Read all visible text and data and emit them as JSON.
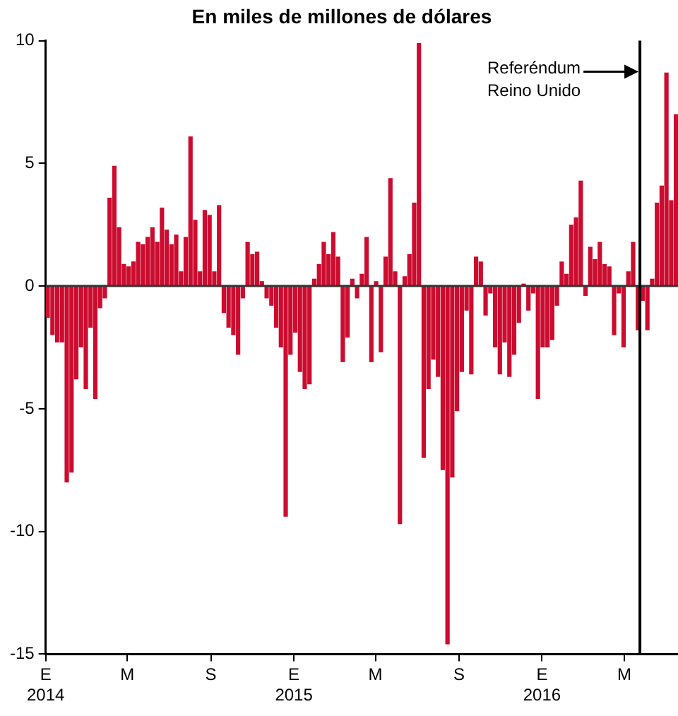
{
  "chart_data": {
    "type": "bar",
    "title": "En miles de millones de dólares",
    "x": [
      "2014-01-04",
      "2014-01-11",
      "2014-01-18",
      "2014-01-25",
      "2014-02-01",
      "2014-02-08",
      "2014-02-15",
      "2014-02-22",
      "2014-03-01",
      "2014-03-08",
      "2014-03-15",
      "2014-03-22",
      "2014-03-29",
      "2014-04-05",
      "2014-04-12",
      "2014-04-19",
      "2014-04-26",
      "2014-05-03",
      "2014-05-10",
      "2014-05-17",
      "2014-05-24",
      "2014-05-31",
      "2014-06-07",
      "2014-06-14",
      "2014-06-21",
      "2014-06-28",
      "2014-07-05",
      "2014-07-12",
      "2014-07-19",
      "2014-07-26",
      "2014-08-02",
      "2014-08-09",
      "2014-08-16",
      "2014-08-23",
      "2014-08-30",
      "2014-09-06",
      "2014-09-13",
      "2014-09-20",
      "2014-09-27",
      "2014-10-04",
      "2014-10-11",
      "2014-10-18",
      "2014-10-25",
      "2014-11-01",
      "2014-11-08",
      "2014-11-15",
      "2014-11-22",
      "2014-11-29",
      "2014-12-06",
      "2014-12-13",
      "2014-12-20",
      "2014-12-27",
      "2015-01-03",
      "2015-01-10",
      "2015-01-17",
      "2015-01-24",
      "2015-01-31",
      "2015-02-07",
      "2015-02-14",
      "2015-02-21",
      "2015-02-28",
      "2015-03-07",
      "2015-03-14",
      "2015-03-21",
      "2015-03-28",
      "2015-04-04",
      "2015-04-11",
      "2015-04-18",
      "2015-04-25",
      "2015-05-02",
      "2015-05-09",
      "2015-05-16",
      "2015-05-23",
      "2015-05-30",
      "2015-06-06",
      "2015-06-13",
      "2015-06-20",
      "2015-06-27",
      "2015-07-04",
      "2015-07-11",
      "2015-07-18",
      "2015-07-25",
      "2015-08-01",
      "2015-08-08",
      "2015-08-15",
      "2015-08-22",
      "2015-08-29",
      "2015-09-05",
      "2015-09-12",
      "2015-09-19",
      "2015-09-26",
      "2015-10-03",
      "2015-10-10",
      "2015-10-17",
      "2015-10-24",
      "2015-10-31",
      "2015-11-07",
      "2015-11-14",
      "2015-11-21",
      "2015-11-28",
      "2015-12-05",
      "2015-12-12",
      "2015-12-19",
      "2015-12-26",
      "2016-01-02",
      "2016-01-09",
      "2016-01-16",
      "2016-01-23",
      "2016-01-30",
      "2016-02-06",
      "2016-02-13",
      "2016-02-20",
      "2016-02-27",
      "2016-03-05",
      "2016-03-12",
      "2016-03-19",
      "2016-03-26",
      "2016-04-02",
      "2016-04-09",
      "2016-04-16",
      "2016-04-23",
      "2016-04-30",
      "2016-05-07",
      "2016-05-14",
      "2016-05-21",
      "2016-05-28",
      "2016-06-04",
      "2016-06-11",
      "2016-06-18",
      "2016-06-25",
      "2016-07-02",
      "2016-07-09",
      "2016-07-16"
    ],
    "values": [
      -1.3,
      -2.0,
      -2.3,
      -2.3,
      -8.0,
      -7.6,
      -3.8,
      -2.5,
      -4.2,
      -1.7,
      -4.6,
      -0.9,
      -0.5,
      3.6,
      4.9,
      2.4,
      0.9,
      0.8,
      1.0,
      1.8,
      1.7,
      2.0,
      2.4,
      1.8,
      3.2,
      2.3,
      1.7,
      2.1,
      0.6,
      2.0,
      6.1,
      2.7,
      0.6,
      3.1,
      2.9,
      0.6,
      3.3,
      -1.1,
      -1.7,
      -2.0,
      -2.8,
      -0.5,
      1.8,
      1.3,
      1.4,
      0.2,
      -0.5,
      -0.8,
      -1.7,
      -2.5,
      -9.4,
      -2.8,
      -1.9,
      -3.5,
      -4.2,
      -4.0,
      0.3,
      0.9,
      1.8,
      1.3,
      2.2,
      1.2,
      -3.1,
      -2.1,
      0.3,
      -0.5,
      0.5,
      2.0,
      -3.1,
      0.2,
      -2.7,
      1.2,
      4.4,
      0.6,
      -9.7,
      0.4,
      1.3,
      3.4,
      9.9,
      -7.0,
      -4.2,
      -3.0,
      -3.7,
      -7.5,
      -14.6,
      -7.8,
      -5.1,
      -3.5,
      -1.0,
      -3.6,
      1.2,
      1.0,
      -1.2,
      -0.3,
      -2.5,
      -3.6,
      -2.3,
      -3.7,
      -2.8,
      -1.5,
      0.1,
      -1.0,
      -0.3,
      -4.6,
      -2.5,
      -2.5,
      -2.2,
      -0.8,
      1.0,
      0.5,
      2.5,
      2.8,
      4.3,
      -0.4,
      1.6,
      1.1,
      1.8,
      0.9,
      0.8,
      -2.0,
      -0.3,
      -2.5,
      0.6,
      1.8,
      -1.8,
      -0.6,
      -1.8,
      0.3,
      3.4,
      4.1,
      8.7,
      3.5,
      7.0
    ],
    "color": "#cc0c2f",
    "xlim": [
      "2014-01-01",
      "2016-07-19"
    ],
    "xticks": [
      {
        "value": "2014-01-01",
        "label": "E\n2014"
      },
      {
        "value": "2014-05-01",
        "label": "M"
      },
      {
        "value": "2014-09-01",
        "label": "S"
      },
      {
        "value": "2015-01-01",
        "label": "E\n2015"
      },
      {
        "value": "2015-05-01",
        "label": "M"
      },
      {
        "value": "2015-09-01",
        "label": "S"
      },
      {
        "value": "2016-01-01",
        "label": "E\n2016"
      },
      {
        "value": "2016-05-01",
        "label": "M"
      }
    ],
    "ylim": [
      -15,
      10
    ],
    "yticks": [
      -15,
      -10,
      -5,
      0,
      5,
      10
    ],
    "grid": false,
    "ref_lines": [
      {
        "axis": "y",
        "value": 0,
        "color": "#333333"
      },
      {
        "axis": "x",
        "value": "2016-05-24",
        "label": "Referéndum\nReino Unido",
        "color": "#000000"
      }
    ]
  }
}
